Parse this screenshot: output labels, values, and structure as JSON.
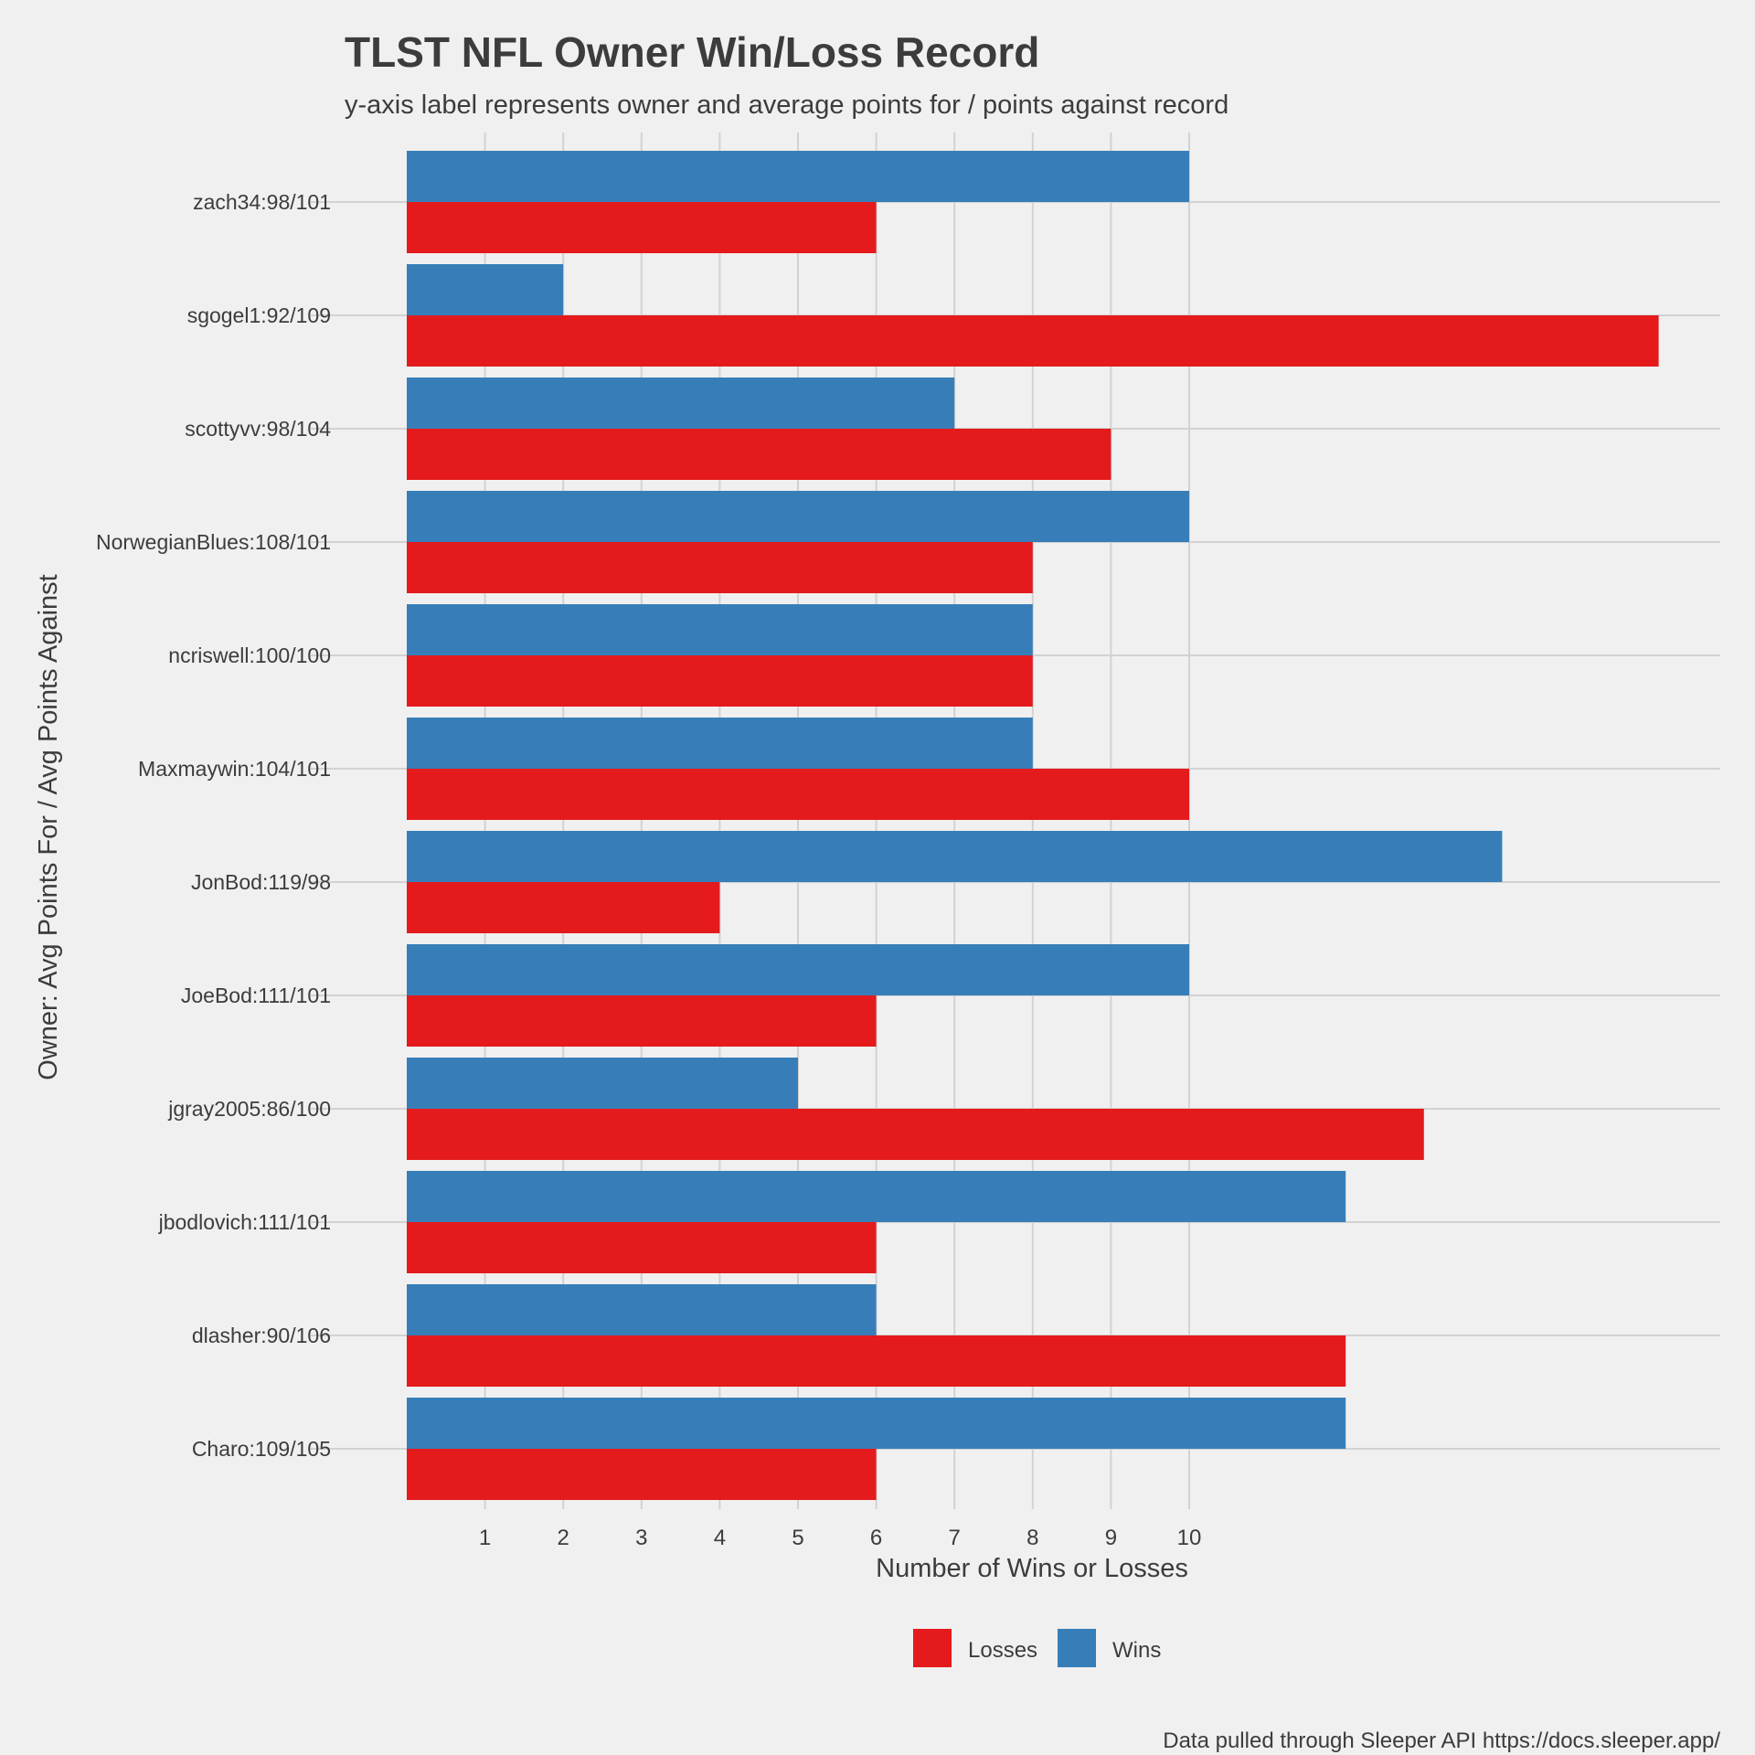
{
  "chart_data": {
    "type": "bar",
    "orientation": "horizontal",
    "title": "TLST NFL Owner Win/Loss Record",
    "subtitle": "y-axis label represents owner and average points for / points against record",
    "xlabel": "Number of Wins or Losses",
    "ylabel": "Owner: Avg Points For / Avg Points Against",
    "caption": "Data pulled through Sleeper API https://docs.sleeper.app/",
    "x_ticks": [
      1,
      2,
      3,
      4,
      5,
      6,
      7,
      8,
      9,
      10
    ],
    "xlim": [
      0,
      16.8
    ],
    "grid": true,
    "legend_position": "bottom",
    "categories": [
      "zach34:98/101",
      "sgogel1:92/109",
      "scottyvv:98/104",
      "NorwegianBlues:108/101",
      "ncriswell:100/100",
      "Maxmaywin:104/101",
      "JonBod:119/98",
      "JoeBod:111/101",
      "jgray2005:86/100",
      "jbodlovich:111/101",
      "dlasher:90/106",
      "Charo:109/105"
    ],
    "series": [
      {
        "name": "Wins",
        "color": "#377eb8",
        "values": [
          10,
          2,
          7,
          10,
          8,
          8,
          14,
          10,
          5,
          12,
          6,
          12
        ]
      },
      {
        "name": "Losses",
        "color": "#e41a1c",
        "values": [
          6,
          16,
          9,
          8,
          8,
          10,
          4,
          6,
          13,
          6,
          12,
          6
        ]
      }
    ],
    "legend": [
      {
        "name": "Losses",
        "color": "#e41a1c"
      },
      {
        "name": "Wins",
        "color": "#377eb8"
      }
    ]
  }
}
